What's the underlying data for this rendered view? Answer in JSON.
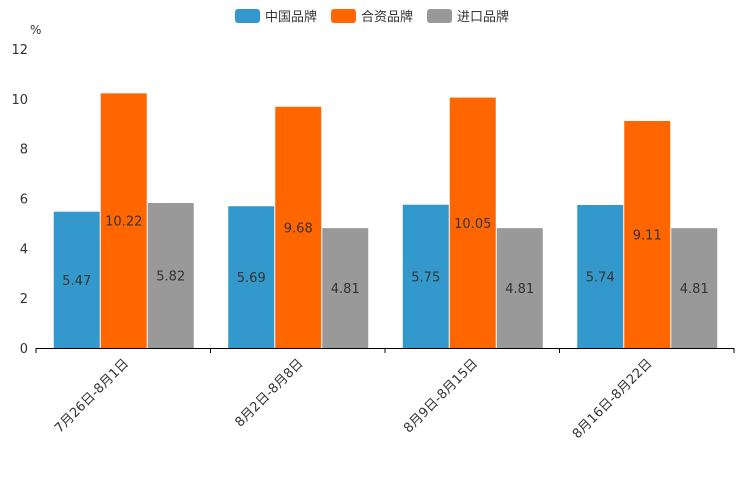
{
  "chart_data": {
    "type": "bar",
    "title": "",
    "xlabel": "",
    "ylabel": "",
    "unit_label": "%",
    "ylim": [
      0,
      12
    ],
    "yticks": [
      0,
      2,
      4,
      6,
      8,
      10,
      12
    ],
    "grid": false,
    "legend_position": "top",
    "categories": [
      "7月26日-8月1日",
      "8月2日-8月8日",
      "8月9日-8月15日",
      "8月16日-8月22日"
    ],
    "series": [
      {
        "name": "中国品牌",
        "color": "#3399cc",
        "values": [
          5.47,
          5.69,
          5.75,
          5.74
        ],
        "labels": [
          "5.47",
          "5.69",
          "5.75",
          "5.74"
        ]
      },
      {
        "name": "合资品牌",
        "color": "#ff6600",
        "values": [
          10.22,
          9.68,
          10.05,
          9.11
        ],
        "labels": [
          "10.22",
          "9.68",
          "10.05",
          "9.11"
        ]
      },
      {
        "name": "进口品牌",
        "color": "#999999",
        "values": [
          5.82,
          4.81,
          4.81,
          4.81
        ],
        "labels": [
          "5.82",
          "4.81",
          "4.81",
          "4.81"
        ]
      }
    ]
  }
}
